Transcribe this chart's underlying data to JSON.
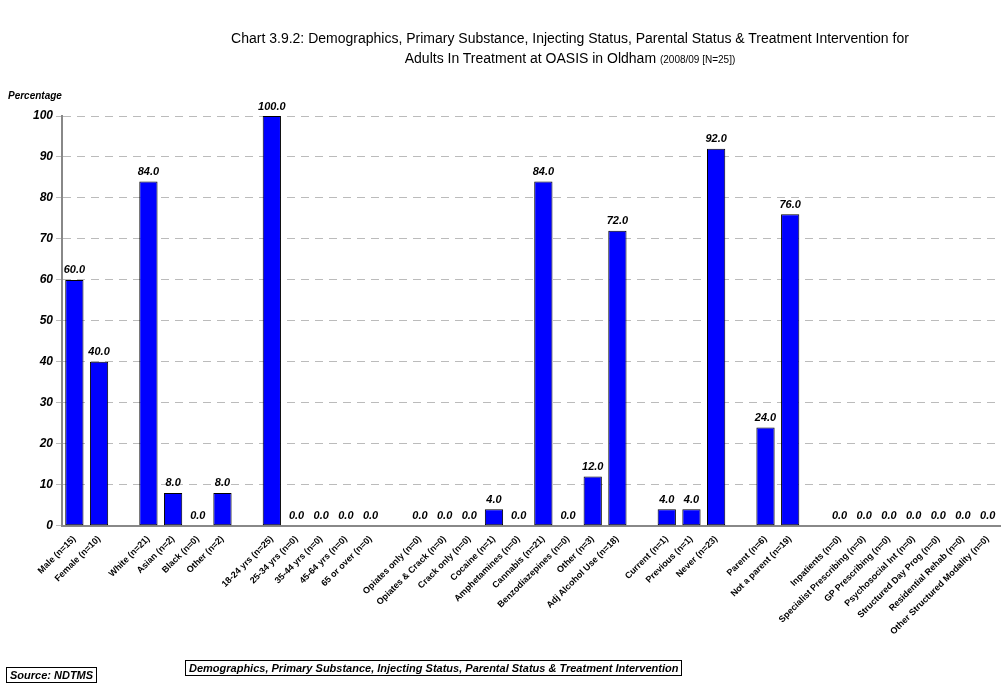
{
  "chart_data": {
    "type": "bar",
    "title": "Chart 3.9.2: Demographics, Primary Substance, Injecting Status, Parental Status & Treatment Intervention for Adults In Treatment at OASIS in Oldham",
    "subtitle": "(2008/09 [N=25])",
    "ylabel": "Percentage",
    "categories": [
      "Male (n=15)",
      "Female (n=10)",
      null,
      "White (n=21)",
      "Asian (n=2)",
      "Black (n=0)",
      "Other (n=2)",
      null,
      "18-24 yrs (n=25)",
      "25-34 yrs (n=0)",
      "35-44 yrs (n=0)",
      "45-64 yrs (n=0)",
      "65 or over (n=0)",
      null,
      "Opiates only (n=0)",
      "Opiates & Crack (n=0)",
      "Crack only (n=0)",
      "Cocaine (n=1)",
      "Amphetamines (n=0)",
      "Cannabis (n=21)",
      "Benzodiazepines (n=0)",
      "Other (n=3)",
      "Adj Alcohol Use (n=18)",
      null,
      "Current (n=1)",
      "Previous (n=1)",
      "Never (n=23)",
      null,
      "Parent (n=6)",
      "Not a parent (n=19)",
      null,
      "Inpatients (n=0)",
      "Specialist Prescribing (n=0)",
      "GP Prescribing (n=0)",
      "Psychosocial Int (n=0)",
      "Structured Day Prog (n=0)",
      "Residential Rehab (n=0)",
      "Other Structured Modality (n=0)"
    ],
    "values": [
      60,
      40,
      null,
      84,
      8,
      0,
      8,
      null,
      100,
      0,
      0,
      0,
      0,
      null,
      0,
      0,
      0,
      4,
      0,
      84,
      0,
      12,
      72,
      null,
      4,
      4,
      92,
      null,
      24,
      76,
      null,
      0,
      0,
      0,
      0,
      0,
      0,
      0
    ],
    "value_labels": [
      "60.0",
      "40.0",
      null,
      "84.0",
      "8.0",
      "0.0",
      "8.0",
      null,
      "100.0",
      "0.0",
      "0.0",
      "0.0",
      "0.0",
      null,
      "0.0",
      "0.0",
      "0.0",
      "4.0",
      "0.0",
      "84.0",
      "0.0",
      "12.0",
      "72.0",
      null,
      "4.0",
      "4.0",
      "92.0",
      null,
      "24.0",
      "76.0",
      null,
      "0.0",
      "0.0",
      "0.0",
      "0.0",
      "0.0",
      "0.0",
      "0.0"
    ],
    "color": "#0000ff",
    "ylim": [
      0,
      100
    ],
    "yticks": [
      0,
      10,
      20,
      30,
      40,
      50,
      60,
      70,
      80,
      90,
      100
    ],
    "grid": "y",
    "legend": false,
    "annotations": [
      "Source: NDTMS",
      "Demographics, Primary Substance, Injecting Status, Parental Status & Treatment Intervention"
    ]
  }
}
